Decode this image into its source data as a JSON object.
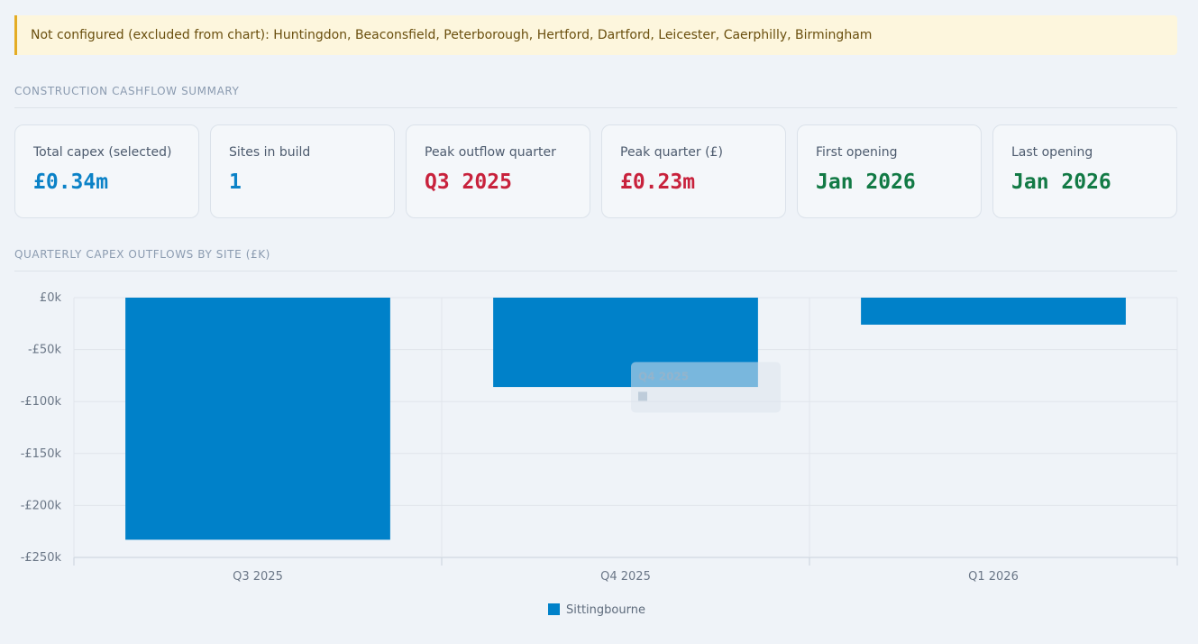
{
  "banner": {
    "text": "Not configured (excluded from chart): Huntingdon, Beaconsfield, Peterborough, Hertford, Dartford, Leicester, Caerphilly, Birmingham"
  },
  "summary": {
    "title": "CONSTRUCTION CASHFLOW SUMMARY",
    "kpis": [
      {
        "label": "Total capex (selected)",
        "value": "£0.34m",
        "color": "#0b82c7"
      },
      {
        "label": "Sites in build",
        "value": "1",
        "color": "#0b82c7"
      },
      {
        "label": "Peak outflow quarter",
        "value": "Q3 2025",
        "color": "#c8223c"
      },
      {
        "label": "Peak quarter (£)",
        "value": "£0.23m",
        "color": "#c8223c"
      },
      {
        "label": "First opening",
        "value": "Jan 2026",
        "color": "#127a45"
      },
      {
        "label": "Last opening",
        "value": "Jan 2026",
        "color": "#127a45"
      }
    ]
  },
  "chart_section": {
    "title": "QUARTERLY CAPEX OUTFLOWS BY SITE (£K)"
  },
  "chart_data": {
    "type": "bar",
    "categories": [
      "Q3 2025",
      "Q4 2025",
      "Q1 2026"
    ],
    "series": [
      {
        "name": "Sittingbourne",
        "values": [
          -233,
          -86,
          -26
        ],
        "color": "#0081c9"
      }
    ],
    "ylim": [
      -250,
      0
    ],
    "yticks": [
      0,
      -50,
      -100,
      -150,
      -200,
      -250
    ],
    "ytick_labels": [
      "£0k",
      "-£50k",
      "-£100k",
      "-£150k",
      "-£200k",
      "-£250k"
    ],
    "grid": true,
    "legend": "bottom-center",
    "tooltip": {
      "category": "Q4 2025"
    }
  }
}
